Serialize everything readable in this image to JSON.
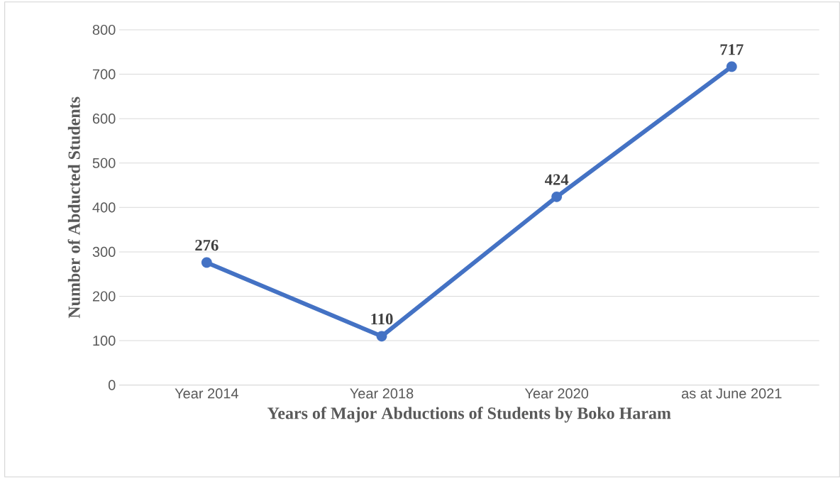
{
  "chart_data": {
    "type": "line",
    "xlabel": "Years of Major Abductions of Students by Boko Haram",
    "ylabel": "Number of Abducted  Students",
    "categories": [
      "Year 2014",
      "Year 2018",
      "Year 2020",
      "as at June 2021"
    ],
    "values": [
      276,
      110,
      424,
      717
    ],
    "color": "#4472c4",
    "ylim": [
      0,
      800
    ],
    "yticks": [
      0,
      100,
      200,
      300,
      400,
      500,
      600,
      700,
      800
    ],
    "grid": "y",
    "marker": "circle",
    "data_labels": true
  }
}
